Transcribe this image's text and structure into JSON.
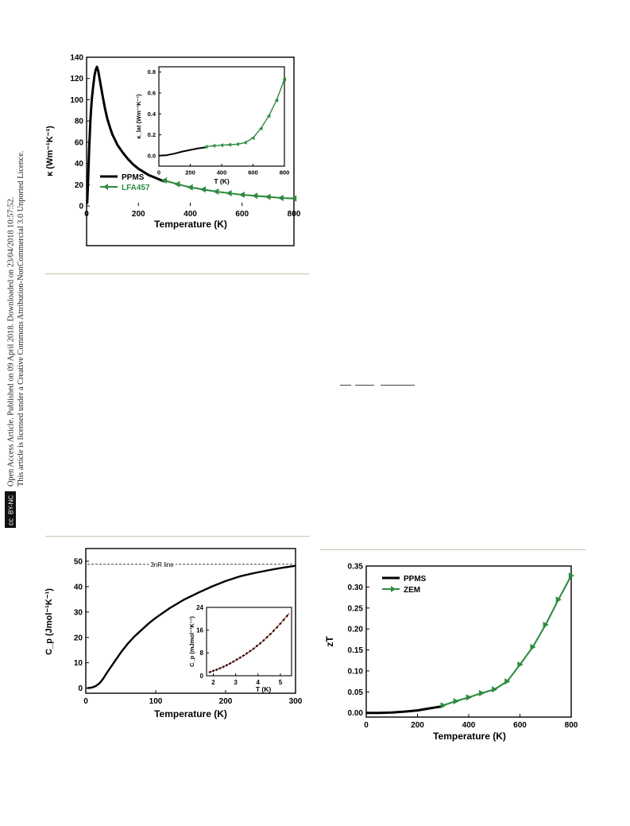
{
  "margin_note": {
    "line1": "Open Access Article. Published on 09 April 2018. Downloaded on 23/04/2018 10:57:52.",
    "line2": "This article is licensed under a Creative Commons Attribution-NonCommercial 3.0 Unported Licence.",
    "badge_cc": "cc",
    "badge_text": "BY-NC"
  },
  "chart_data": [
    {
      "type": "line",
      "id": "thermal-conductivity",
      "xlabel": "Temperature (K)",
      "ylabel": "κ (Wm⁻¹K⁻¹)",
      "xlim": [
        0,
        800
      ],
      "ylim": [
        0,
        140
      ],
      "xticks": [
        0,
        200,
        400,
        600,
        800
      ],
      "yticks": [
        0,
        20,
        40,
        60,
        80,
        100,
        120,
        140
      ],
      "legend": "bottom-left",
      "series": [
        {
          "name": "PPMS",
          "color": "#000000",
          "marker": "none",
          "x": [
            2,
            5,
            10,
            15,
            20,
            25,
            30,
            35,
            40,
            45,
            50,
            60,
            70,
            80,
            90,
            100,
            120,
            140,
            160,
            180,
            200,
            220,
            240,
            260,
            280,
            300
          ],
          "y": [
            2,
            18,
            55,
            82,
            100,
            112,
            122,
            128,
            131,
            127,
            120,
            106,
            93,
            82,
            74,
            67,
            57,
            50,
            44,
            39,
            35,
            32,
            29,
            27,
            25,
            23
          ]
        },
        {
          "name": "LFA457",
          "color": "#2e8b3e",
          "marker": "left-triangle",
          "x": [
            300,
            350,
            400,
            450,
            500,
            550,
            600,
            650,
            700,
            750,
            800
          ],
          "y": [
            24,
            20.5,
            17.5,
            15.5,
            13.5,
            12,
            10.5,
            9.5,
            8.5,
            7.5,
            7
          ]
        }
      ],
      "inset": {
        "xlabel": "T (K)",
        "ylabel": "κ_lat (Wm⁻¹K⁻¹)",
        "xlim": [
          0,
          800
        ],
        "ylim": [
          -0.1,
          0.85
        ],
        "xticks": [
          0,
          200,
          400,
          600,
          800
        ],
        "yticks": [
          0.0,
          0.2,
          0.4,
          0.6,
          0.8
        ],
        "series": [
          {
            "color": "#000000",
            "marker": "none",
            "x": [
              2,
              50,
              100,
              150,
              200,
              250,
              300
            ],
            "y": [
              0.0,
              0.005,
              0.02,
              0.04,
              0.055,
              0.07,
              0.08
            ]
          },
          {
            "color": "#2e8b3e",
            "marker": "left-triangle",
            "x": [
              300,
              350,
              400,
              450,
              500,
              550,
              600,
              650,
              700,
              750,
              800
            ],
            "y": [
              0.085,
              0.095,
              0.1,
              0.105,
              0.11,
              0.125,
              0.17,
              0.26,
              0.38,
              0.53,
              0.73
            ]
          }
        ]
      }
    },
    {
      "type": "line",
      "id": "heat-capacity",
      "xlabel": "Temperature (K)",
      "ylabel": "C_p (Jmol⁻¹K⁻¹)",
      "xlim": [
        0,
        300
      ],
      "ylim": [
        -2,
        55
      ],
      "xticks": [
        0,
        100,
        200,
        300
      ],
      "yticks": [
        0,
        10,
        20,
        30,
        40,
        50
      ],
      "reference_line": {
        "y": 48.8,
        "label": "3nR line"
      },
      "series": [
        {
          "color": "#000000",
          "marker": "none",
          "x": [
            2,
            8,
            14,
            20,
            25,
            30,
            40,
            50,
            60,
            70,
            80,
            90,
            100,
            120,
            140,
            160,
            180,
            200,
            220,
            240,
            260,
            280,
            300
          ],
          "y": [
            0,
            0.2,
            0.8,
            2,
            3.8,
            6,
            10,
            14,
            17.5,
            20.5,
            23,
            25.5,
            27.7,
            31.5,
            34.8,
            37.5,
            40,
            42.2,
            44,
            45.3,
            46.4,
            47.4,
            48.2
          ]
        }
      ],
      "inset": {
        "xlabel": "T (K)",
        "ylabel": "C_p (mJmol⁻¹K⁻¹)",
        "xlim": [
          1.7,
          5.5
        ],
        "ylim": [
          0,
          24
        ],
        "xticks": [
          2,
          3,
          4,
          5
        ],
        "yticks": [
          0,
          8,
          16,
          24
        ],
        "series": [
          {
            "color": "#c0392b",
            "marker": "none",
            "x": [
              1.8,
              2.2,
              2.6,
              3.0,
              3.4,
              3.8,
              4.2,
              4.6,
              5.0,
              5.4
            ],
            "y": [
              1.2,
              2.3,
              3.7,
              5.3,
              7.2,
              9.4,
              12.0,
              15.0,
              18.3,
              22.0
            ]
          },
          {
            "color": "#000000",
            "marker": "plus",
            "x": [
              1.85,
              2.0,
              2.15,
              2.3,
              2.45,
              2.6,
              2.75,
              2.9,
              3.05,
              3.2,
              3.35,
              3.5,
              3.65,
              3.8,
              3.95,
              4.1,
              4.25,
              4.4,
              4.55,
              4.7,
              4.85,
              5.0,
              5.15,
              5.3
            ],
            "y": [
              1.3,
              1.7,
              2.1,
              2.6,
              3.1,
              3.7,
              4.3,
              5.0,
              5.7,
              6.4,
              7.1,
              7.9,
              8.7,
              9.5,
              10.5,
              11.4,
              12.4,
              13.5,
              14.6,
              15.8,
              17.0,
              18.3,
              19.6,
              21.0
            ]
          }
        ]
      }
    },
    {
      "type": "line",
      "id": "figure-of-merit",
      "xlabel": "Temperature (K)",
      "ylabel": "zT",
      "xlim": [
        0,
        800
      ],
      "ylim": [
        -0.01,
        0.35
      ],
      "xticks": [
        0,
        200,
        400,
        600,
        800
      ],
      "yticks": [
        0.0,
        0.05,
        0.1,
        0.15,
        0.2,
        0.25,
        0.3,
        0.35
      ],
      "ytick_labels": [
        "0.00",
        "0.05",
        "0.10",
        "0.15",
        "0.20",
        "0.25",
        "0.30",
        "0.35"
      ],
      "legend": "top-left",
      "series": [
        {
          "name": "PPMS",
          "color": "#000000",
          "marker": "none",
          "x": [
            2,
            50,
            100,
            150,
            200,
            250,
            300
          ],
          "y": [
            0.0,
            0.0,
            0.001,
            0.003,
            0.006,
            0.011,
            0.016
          ]
        },
        {
          "name": "ZEM",
          "color": "#2e8b3e",
          "marker": "right-triangle",
          "x": [
            300,
            350,
            400,
            450,
            500,
            550,
            600,
            650,
            700,
            750,
            800
          ],
          "y": [
            0.018,
            0.028,
            0.037,
            0.047,
            0.056,
            0.075,
            0.115,
            0.157,
            0.21,
            0.27,
            0.327
          ]
        }
      ]
    }
  ]
}
